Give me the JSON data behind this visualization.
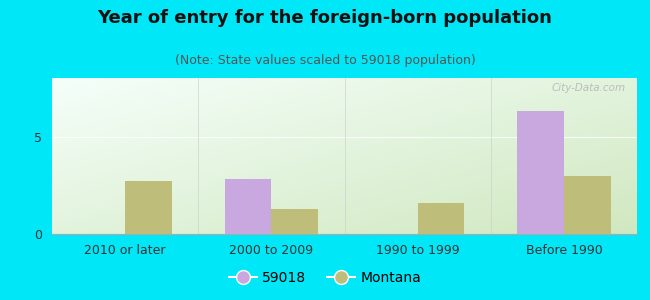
{
  "title": "Year of entry for the foreign-born population",
  "subtitle": "(Note: State values scaled to 59018 population)",
  "categories": [
    "2010 or later",
    "2000 to 2009",
    "1990 to 1999",
    "Before 1990"
  ],
  "series_59018": [
    0,
    2.8,
    0,
    6.3
  ],
  "series_montana": [
    2.7,
    1.3,
    1.6,
    3.0
  ],
  "color_59018": "#c9a8e0",
  "color_montana": "#bebe7a",
  "background_outer": "#00e8f8",
  "background_inner_top_left": "#f5fffa",
  "background_inner_bottom_right": "#d0e8c0",
  "ylim": [
    0,
    8
  ],
  "yticks": [
    0,
    5
  ],
  "bar_width": 0.32,
  "title_fontsize": 13,
  "subtitle_fontsize": 9,
  "tick_fontsize": 9,
  "legend_fontsize": 10
}
